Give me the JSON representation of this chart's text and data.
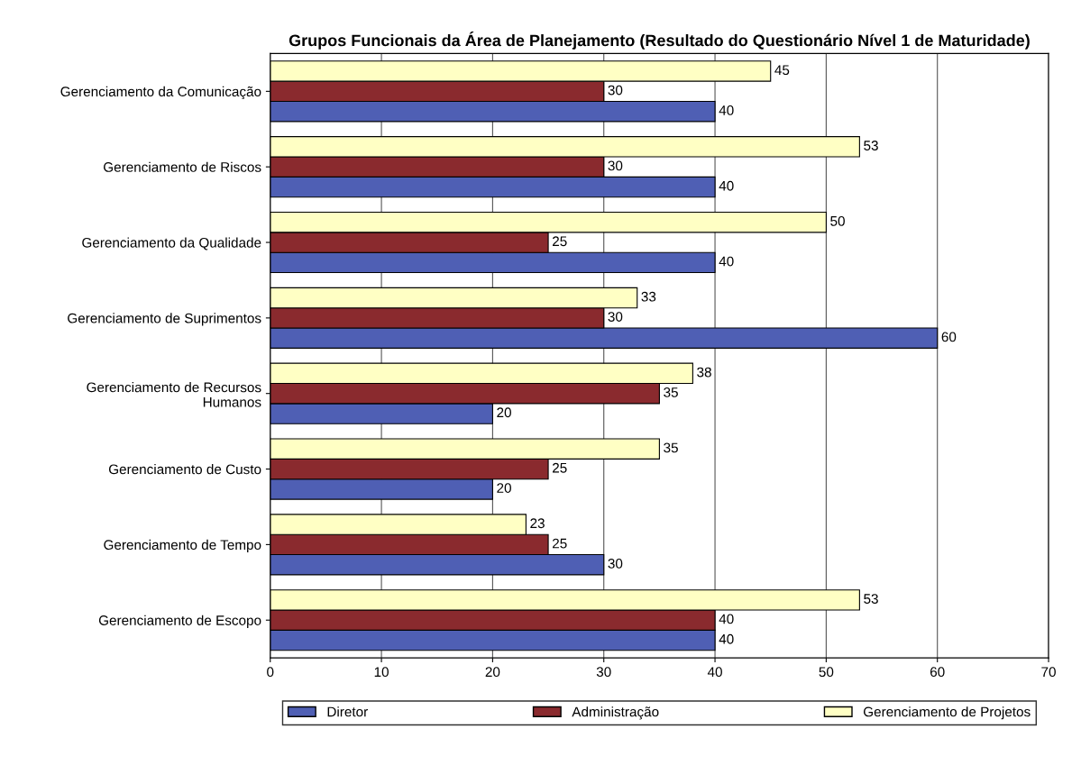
{
  "chart_data": {
    "type": "bar",
    "orientation": "horizontal",
    "title": "Grupos Funcionais da Área de Planejamento (Resultado do Questionário Nível 1 de Maturidade)",
    "categories": [
      "Gerenciamento da Comunicação",
      "Gerenciamento de Riscos",
      "Gerenciamento da Qualidade",
      "Gerenciamento de Suprimentos",
      "Gerenciamento de Recursos\nHumanos",
      "Gerenciamento de Custo",
      "Gerenciamento de Tempo",
      "Gerenciamento de Escopo"
    ],
    "series": [
      {
        "name": "Diretor",
        "color": "#4f5fb4",
        "values": [
          40,
          40,
          40,
          60,
          20,
          20,
          30,
          40
        ]
      },
      {
        "name": "Administração",
        "color": "#8a2a2e",
        "values": [
          30,
          30,
          25,
          30,
          35,
          25,
          25,
          40
        ]
      },
      {
        "name": "Gerenciamento de Projetos",
        "color": "#ffffc4",
        "values": [
          45,
          53,
          50,
          33,
          38,
          35,
          23,
          53
        ]
      }
    ],
    "xlim": [
      0,
      70
    ],
    "xticks": [
      0,
      10,
      20,
      30,
      40,
      50,
      60,
      70
    ],
    "grid": "x",
    "legend": "bottom",
    "data_labels": true
  }
}
